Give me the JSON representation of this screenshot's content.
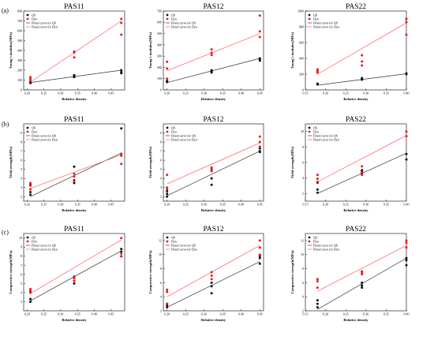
{
  "row_labels": [
    "(a)",
    "(b)",
    "(c)"
  ],
  "legend": {
    "qs": "QS",
    "dyn": "Dyn",
    "fit_qs": "Fitted curve for QS",
    "fit_dyn": "Fitted curve for Dyn"
  },
  "colors": {
    "qs": "#111111",
    "dyn": "#e41a1c",
    "fit_qs": "#333333",
    "fit_dyn": "#ff5a5a"
  },
  "chart_data": [
    {
      "type": "scatter",
      "title": "PAS11",
      "xlabel": "Relative density",
      "ylabel": "Young's modulus(MPa)",
      "xlim": [
        0.19,
        0.49
      ],
      "ylim": [
        0,
        800
      ],
      "xticks": [
        0.2,
        0.25,
        0.3,
        0.35,
        0.4,
        0.45
      ],
      "yticks": [
        0,
        100,
        200,
        300,
        400,
        500,
        600,
        700,
        800
      ],
      "legend_position": "top-left",
      "series": [
        {
          "name": "QS",
          "x": [
            0.21,
            0.21,
            0.21,
            0.34,
            0.34,
            0.34,
            0.48,
            0.48,
            0.48
          ],
          "y": [
            80,
            90,
            70,
            130,
            145,
            150,
            170,
            180,
            200
          ]
        },
        {
          "name": "Dyn",
          "x": [
            0.21,
            0.21,
            0.21,
            0.34,
            0.34,
            0.34,
            0.48,
            0.48,
            0.48
          ],
          "y": [
            90,
            110,
            130,
            330,
            380,
            390,
            560,
            680,
            720
          ]
        },
        {
          "name": "Fitted curve for QS",
          "x": [
            0.21,
            0.48
          ],
          "y": [
            75,
            200
          ]
        },
        {
          "name": "Fitted curve for Dyn",
          "x": [
            0.21,
            0.48
          ],
          "y": [
            80,
            700
          ]
        }
      ]
    },
    {
      "type": "scatter",
      "title": "PAS12",
      "xlabel": "Relative density",
      "ylabel": "Young's modulus(MPa)",
      "xlim": [
        0.19,
        0.46
      ],
      "ylim": [
        0,
        700
      ],
      "xticks": [
        0.2,
        0.25,
        0.3,
        0.35,
        0.4,
        0.45
      ],
      "yticks": [
        0,
        100,
        200,
        300,
        400,
        500,
        600,
        700
      ],
      "legend_position": "top-left",
      "series": [
        {
          "name": "QS",
          "x": [
            0.2,
            0.2,
            0.2,
            0.32,
            0.32,
            0.32,
            0.45,
            0.45,
            0.45
          ],
          "y": [
            70,
            75,
            80,
            155,
            165,
            175,
            260,
            270,
            280
          ]
        },
        {
          "name": "Dyn",
          "x": [
            0.2,
            0.2,
            0.2,
            0.32,
            0.32,
            0.32,
            0.45,
            0.45,
            0.45
          ],
          "y": [
            100,
            190,
            250,
            310,
            330,
            360,
            470,
            520,
            660
          ]
        },
        {
          "name": "Fitted curve for QS",
          "x": [
            0.2,
            0.45
          ],
          "y": [
            65,
            280
          ]
        },
        {
          "name": "Fitted curve for Dyn",
          "x": [
            0.2,
            0.45
          ],
          "y": [
            170,
            500
          ]
        }
      ]
    },
    {
      "type": "scatter",
      "title": "PAS22",
      "xlabel": "Relative density",
      "ylabel": "Young's modulus(MPa)",
      "xlim": [
        0.15,
        0.4
      ],
      "ylim": [
        0,
        1000
      ],
      "xticks": [
        0.15,
        0.2,
        0.25,
        0.3,
        0.35,
        0.4
      ],
      "yticks": [
        0,
        200,
        400,
        600,
        800,
        1000
      ],
      "legend_position": "top-left",
      "series": [
        {
          "name": "QS",
          "x": [
            0.18,
            0.18,
            0.18,
            0.29,
            0.29,
            0.29,
            0.4,
            0.4
          ],
          "y": [
            70,
            75,
            80,
            130,
            140,
            150,
            200,
            210
          ]
        },
        {
          "name": "Dyn",
          "x": [
            0.18,
            0.18,
            0.18,
            0.29,
            0.29,
            0.29,
            0.4,
            0.4,
            0.4
          ],
          "y": [
            220,
            240,
            260,
            310,
            360,
            440,
            700,
            860,
            900
          ]
        },
        {
          "name": "Fitted curve for QS",
          "x": [
            0.18,
            0.4
          ],
          "y": [
            60,
            205
          ]
        },
        {
          "name": "Fitted curve for Dyn",
          "x": [
            0.18,
            0.4
          ],
          "y": [
            200,
            850
          ]
        }
      ]
    },
    {
      "type": "scatter",
      "title": "PAS11",
      "xlabel": "Relative density",
      "ylabel": "Yield strength(MPa)",
      "xlim": [
        0.19,
        0.49
      ],
      "ylim": [
        1.5,
        10
      ],
      "xticks": [
        0.2,
        0.25,
        0.3,
        0.35,
        0.4,
        0.45
      ],
      "yticks": [
        2,
        3,
        4,
        5,
        6,
        7,
        8,
        9
      ],
      "legend_position": "top-left",
      "series": [
        {
          "name": "QS",
          "x": [
            0.21,
            0.21,
            0.21,
            0.34,
            0.34,
            0.34,
            0.48,
            0.48
          ],
          "y": [
            2.2,
            2.5,
            3.3,
            3.5,
            3.8,
            5.3,
            6.7,
            9.5
          ]
        },
        {
          "name": "Dyn",
          "x": [
            0.21,
            0.21,
            0.21,
            0.34,
            0.34,
            0.34,
            0.48,
            0.48,
            0.48
          ],
          "y": [
            2.8,
            3.2,
            3.5,
            3.7,
            4.2,
            4.5,
            5.6,
            6.5,
            6.7
          ]
        },
        {
          "name": "Fitted curve for QS",
          "x": [
            0.21,
            0.48
          ],
          "y": [
            2.0,
            6.8
          ]
        },
        {
          "name": "Fitted curve for Dyn",
          "x": [
            0.21,
            0.48
          ],
          "y": [
            2.9,
            6.6
          ]
        }
      ]
    },
    {
      "type": "scatter",
      "title": "PAS12",
      "xlabel": "Relative density",
      "ylabel": "Yield strength(MPa)",
      "xlim": [
        0.19,
        0.46
      ],
      "ylim": [
        1.5,
        10
      ],
      "xticks": [
        0.2,
        0.25,
        0.3,
        0.35,
        0.4,
        0.45
      ],
      "yticks": [
        2,
        3,
        4,
        5,
        6,
        7,
        8,
        9
      ],
      "legend_position": "top-left",
      "series": [
        {
          "name": "QS",
          "x": [
            0.2,
            0.2,
            0.2,
            0.32,
            0.32,
            0.32,
            0.45,
            0.45,
            0.45
          ],
          "y": [
            2.0,
            2.3,
            2.6,
            3.3,
            4.0,
            5.0,
            6.9,
            7.0,
            7.3
          ]
        },
        {
          "name": "Dyn",
          "x": [
            0.2,
            0.2,
            0.2,
            0.32,
            0.32,
            0.32,
            0.45,
            0.45,
            0.45
          ],
          "y": [
            2.8,
            3.0,
            4.4,
            4.8,
            5.0,
            5.2,
            7.5,
            8.0,
            8.6
          ]
        },
        {
          "name": "Fitted curve for QS",
          "x": [
            0.2,
            0.45
          ],
          "y": [
            2.1,
            7.0
          ]
        },
        {
          "name": "Fitted curve for Dyn",
          "x": [
            0.2,
            0.45
          ],
          "y": [
            3.4,
            7.9
          ]
        }
      ]
    },
    {
      "type": "scatter",
      "title": "PAS22",
      "xlabel": "Relative density",
      "ylabel": "Yield strength(MPa)",
      "xlim": [
        0.15,
        0.4
      ],
      "ylim": [
        1,
        11
      ],
      "xticks": [
        0.15,
        0.2,
        0.25,
        0.3,
        0.35,
        0.4
      ],
      "yticks": [
        2,
        4,
        6,
        8,
        10
      ],
      "legend_position": "top-left",
      "series": [
        {
          "name": "QS",
          "x": [
            0.18,
            0.18,
            0.18,
            0.29,
            0.29,
            0.29,
            0.4,
            0.4
          ],
          "y": [
            2.1,
            2.5,
            3.4,
            4.6,
            4.8,
            5.0,
            6.4,
            7.1
          ]
        },
        {
          "name": "Dyn",
          "x": [
            0.18,
            0.18,
            0.18,
            0.29,
            0.29,
            0.29,
            0.4,
            0.4
          ],
          "y": [
            3.5,
            3.9,
            4.4,
            4.4,
            4.7,
            5.5,
            9.4,
            10.0
          ]
        },
        {
          "name": "Fitted curve for QS",
          "x": [
            0.18,
            0.4
          ],
          "y": [
            2.0,
            7.2
          ]
        },
        {
          "name": "Fitted curve for Dyn",
          "x": [
            0.18,
            0.4
          ],
          "y": [
            3.5,
            9.5
          ]
        }
      ]
    },
    {
      "type": "scatter",
      "title": "PAS11",
      "xlabel": "Relative density",
      "ylabel": "Compressive strength(MPa)",
      "xlim": [
        0.19,
        0.49
      ],
      "ylim": [
        2,
        10.5
      ],
      "xticks": [
        0.2,
        0.25,
        0.3,
        0.35,
        0.4,
        0.45
      ],
      "yticks": [
        3,
        4,
        5,
        6,
        7,
        8,
        9,
        10
      ],
      "legend_position": "top-left",
      "series": [
        {
          "name": "QS",
          "x": [
            0.21,
            0.21,
            0.21,
            0.34,
            0.34,
            0.34,
            0.48,
            0.48,
            0.48
          ],
          "y": [
            3.0,
            3.3,
            4.1,
            5.0,
            5.3,
            5.6,
            8.0,
            8.5,
            8.8
          ]
        },
        {
          "name": "Dyn",
          "x": [
            0.21,
            0.21,
            0.21,
            0.34,
            0.34,
            0.34,
            0.48,
            0.48,
            0.48
          ],
          "y": [
            4.0,
            4.2,
            4.4,
            5.3,
            5.6,
            5.8,
            8.0,
            8.3,
            10.0
          ]
        },
        {
          "name": "Fitted curve for QS",
          "x": [
            0.21,
            0.48
          ],
          "y": [
            3.1,
            8.6
          ]
        },
        {
          "name": "Fitted curve for Dyn",
          "x": [
            0.21,
            0.48
          ],
          "y": [
            3.9,
            9.8
          ]
        }
      ]
    },
    {
      "type": "scatter",
      "title": "PAS12",
      "xlabel": "Relative density",
      "ylabel": "Compressive strength(MPa)",
      "xlim": [
        0.19,
        0.46
      ],
      "ylim": [
        2,
        13
      ],
      "xticks": [
        0.2,
        0.25,
        0.3,
        0.35,
        0.4,
        0.45
      ],
      "yticks": [
        2,
        4,
        6,
        8,
        10,
        12
      ],
      "legend_position": "top-left",
      "series": [
        {
          "name": "QS",
          "x": [
            0.2,
            0.2,
            0.2,
            0.32,
            0.32,
            0.32,
            0.45,
            0.45,
            0.45
          ],
          "y": [
            2.5,
            2.8,
            3.0,
            4.5,
            5.5,
            6.0,
            8.7,
            9.5,
            9.8
          ]
        },
        {
          "name": "Dyn",
          "x": [
            0.2,
            0.2,
            0.2,
            0.32,
            0.32,
            0.32,
            0.45,
            0.45,
            0.45
          ],
          "y": [
            3.0,
            4.7,
            5.0,
            6.5,
            7.0,
            7.5,
            10.0,
            11.0,
            12.0
          ]
        },
        {
          "name": "Fitted curve for QS",
          "x": [
            0.2,
            0.45
          ],
          "y": [
            2.5,
            9.0
          ]
        },
        {
          "name": "Fitted curve for Dyn",
          "x": [
            0.2,
            0.45
          ],
          "y": [
            4.0,
            11.3
          ]
        }
      ]
    },
    {
      "type": "scatter",
      "title": "PAS22",
      "xlabel": "Relative density",
      "ylabel": "Compressive strength(MPa)",
      "xlim": [
        0.15,
        0.4
      ],
      "ylim": [
        2,
        13
      ],
      "xticks": [
        0.15,
        0.2,
        0.25,
        0.3,
        0.35,
        0.4
      ],
      "yticks": [
        2,
        4,
        6,
        8,
        10,
        12
      ],
      "legend_position": "top-left",
      "series": [
        {
          "name": "QS",
          "x": [
            0.18,
            0.18,
            0.18,
            0.29,
            0.29,
            0.29,
            0.4,
            0.4,
            0.4
          ],
          "y": [
            2.5,
            3.0,
            3.5,
            5.3,
            5.6,
            6.0,
            8.5,
            9.2,
            9.5
          ]
        },
        {
          "name": "Dyn",
          "x": [
            0.18,
            0.18,
            0.18,
            0.29,
            0.29,
            0.29,
            0.4,
            0.4,
            0.4
          ],
          "y": [
            5.3,
            6.2,
            6.5,
            7.2,
            7.5,
            7.6,
            11.0,
            11.7,
            12.0
          ]
        },
        {
          "name": "Fitted curve for QS",
          "x": [
            0.18,
            0.4
          ],
          "y": [
            2.2,
            9.5
          ]
        },
        {
          "name": "Fitted curve for Dyn",
          "x": [
            0.18,
            0.4
          ],
          "y": [
            4.8,
            11.3
          ]
        }
      ]
    }
  ]
}
